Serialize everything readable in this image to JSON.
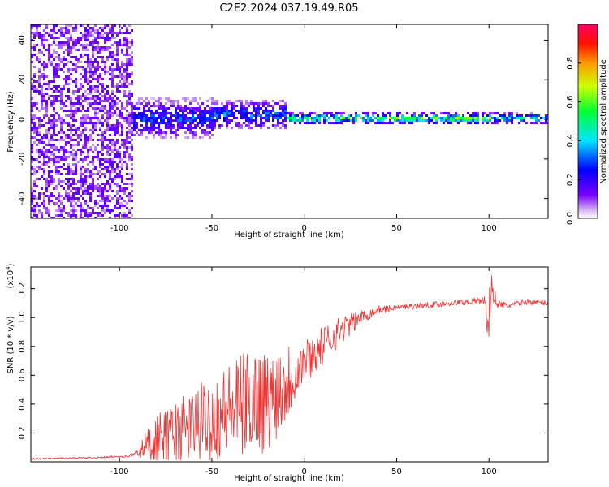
{
  "figure_title": "C2E2.2024.037.19.49.R05",
  "colors": {
    "snr_line": "#ee3333",
    "ridge_low": "#d7b8f5",
    "ridge_mid": "#7a33ff",
    "ridge_high": "#ff3300"
  },
  "chart_data": [
    {
      "type": "heatmap",
      "title": "",
      "xlabel": "Height of straight line (km)",
      "ylabel": "Frequency (Hz)",
      "xlim": [
        -148,
        132
      ],
      "ylim": [
        -50,
        48
      ],
      "x_ticks": [
        -100,
        -50,
        0,
        50,
        100
      ],
      "x_tick_labels": [
        "-100",
        "-50",
        "0",
        "50",
        "100"
      ],
      "y_ticks": [
        -40,
        -20,
        0,
        20,
        40
      ],
      "y_tick_labels": [
        "-40",
        "-20",
        "0",
        "20",
        "40"
      ],
      "colorbar": {
        "label": "Normalized spectral amplitude",
        "range": [
          0,
          1
        ],
        "ticks": [
          0.0,
          0.2,
          0.4,
          0.6,
          0.8
        ],
        "tick_labels": [
          "0.0",
          "0.2",
          "0.4",
          "0.6",
          "0.8"
        ],
        "colormap": "rainbow"
      },
      "ridge": {
        "description_points": [
          {
            "x_range": [
              -148,
              -93
            ],
            "freq_center": 0,
            "freq_spread": 48,
            "amplitude": 0.2
          },
          {
            "x_range": [
              -93,
              -50
            ],
            "freq_center": 1,
            "freq_spread": 10,
            "amplitude": 0.3
          },
          {
            "x_range": [
              -50,
              -10
            ],
            "freq_center": 3,
            "freq_spread": 7,
            "amplitude": 0.35
          },
          {
            "x_range": [
              -10,
              100
            ],
            "freq_center": 1,
            "freq_spread": 3,
            "amplitude": 0.6
          },
          {
            "x_range": [
              100,
              132
            ],
            "freq_center": 1,
            "freq_spread": 3,
            "amplitude": 0.45
          }
        ]
      }
    },
    {
      "type": "line",
      "title": "",
      "xlabel": "Height of straight line (km)",
      "ylabel": "SNR (10 * v/v)",
      "y_multiplier_label": "(x10",
      "y_multiplier_exp": "4",
      "xlim": [
        -148,
        132
      ],
      "ylim": [
        0,
        1.35
      ],
      "x_ticks": [
        -100,
        -50,
        0,
        50,
        100
      ],
      "x_tick_labels": [
        "-100",
        "-50",
        "0",
        "50",
        "100"
      ],
      "y_ticks": [
        0.2,
        0.4,
        0.6,
        0.8,
        1.0,
        1.2
      ],
      "y_tick_labels": [
        "0.2",
        "0.4",
        "0.6",
        "0.8",
        "1.0",
        "1.2"
      ],
      "series": [
        {
          "name": "SNR",
          "x": [
            -148,
            -130,
            -110,
            -95,
            -90,
            -85,
            -80,
            -75,
            -70,
            -65,
            -60,
            -55,
            -50,
            -45,
            -40,
            -35,
            -30,
            -25,
            -20,
            -15,
            -10,
            -5,
            0,
            5,
            10,
            15,
            20,
            25,
            30,
            40,
            50,
            60,
            70,
            80,
            90,
            98,
            100,
            101,
            102,
            104,
            110,
            120,
            132
          ],
          "y": [
            0.02,
            0.025,
            0.03,
            0.04,
            0.06,
            0.12,
            0.15,
            0.17,
            0.2,
            0.22,
            0.25,
            0.28,
            0.3,
            0.33,
            0.36,
            0.38,
            0.42,
            0.45,
            0.4,
            0.5,
            0.55,
            0.62,
            0.7,
            0.74,
            0.8,
            0.86,
            0.92,
            0.95,
            1.0,
            1.05,
            1.07,
            1.08,
            1.09,
            1.1,
            1.11,
            1.12,
            0.9,
            1.15,
            1.2,
            1.1,
            1.08,
            1.11,
            1.1
          ],
          "spread": [
            0.005,
            0.005,
            0.005,
            0.01,
            0.03,
            0.12,
            0.18,
            0.2,
            0.22,
            0.24,
            0.26,
            0.28,
            0.3,
            0.32,
            0.34,
            0.36,
            0.36,
            0.38,
            0.36,
            0.34,
            0.3,
            0.22,
            0.16,
            0.14,
            0.14,
            0.12,
            0.1,
            0.08,
            0.05,
            0.03,
            0.02,
            0.02,
            0.02,
            0.02,
            0.02,
            0.03,
            0.3,
            0.2,
            0.1,
            0.03,
            0.02,
            0.02,
            0.02
          ]
        }
      ]
    }
  ]
}
